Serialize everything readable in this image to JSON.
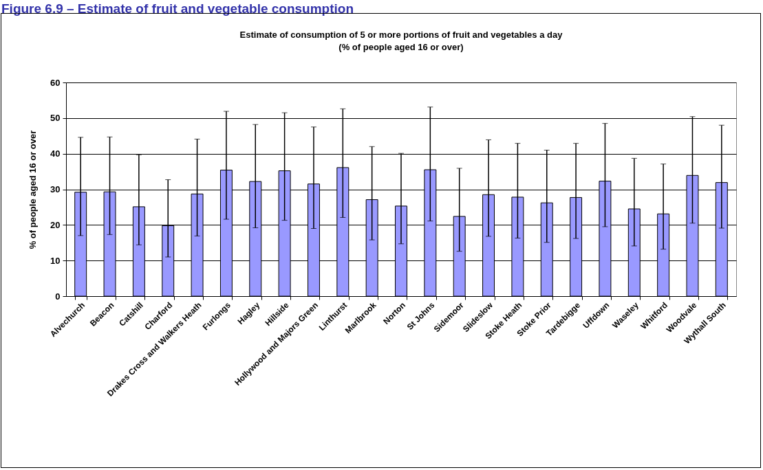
{
  "chart_data": {
    "type": "bar",
    "title": "Figure 6.9 – Estimate of fruit and vegetable consumption",
    "subtitle": "Estimate of consumption of 5 or more portions of fruit and vegetables a day\n(% of people aged 16 or over)",
    "ylabel": "% of people aged 16 or over",
    "categories": [
      "Alvechurch",
      "Beacon",
      "Catshill",
      "Charford",
      "Drakes Cross and Walkers Heath",
      "Furlongs",
      "Hagley",
      "Hillside",
      "Hollywood and Majors Green",
      "Linthurst",
      "Marlbrook",
      "Norton",
      "St Johns",
      "Sidemoor",
      "Slideslow",
      "Stoke Heath",
      "Stoke Prior",
      "Tardebigge",
      "Uffdown",
      "Waseley",
      "Whitford",
      "Woodvale",
      "Wythall South"
    ],
    "values": [
      29.2,
      29.3,
      25.1,
      19.8,
      28.7,
      35.4,
      32.2,
      35.2,
      31.5,
      36.1,
      27.1,
      25.3,
      35.5,
      22.4,
      28.5,
      27.8,
      26.2,
      27.7,
      32.3,
      24.5,
      23.1,
      33.9,
      31.9
    ],
    "errors": [
      [
        17,
        44.6
      ],
      [
        17.3,
        44.7
      ],
      [
        14.4,
        39.7
      ],
      [
        11,
        32.7
      ],
      [
        16.9,
        44.1
      ],
      [
        21.6,
        51.9
      ],
      [
        19.2,
        48.2
      ],
      [
        21.3,
        51.5
      ],
      [
        19,
        47.5
      ],
      [
        22.1,
        52.6
      ],
      [
        15.8,
        42
      ],
      [
        14.7,
        40.1
      ],
      [
        21.1,
        53.1
      ],
      [
        12.6,
        35.9
      ],
      [
        16.8,
        43.9
      ],
      [
        16.3,
        42.9
      ],
      [
        15.1,
        41
      ],
      [
        16.2,
        42.9
      ],
      [
        19.5,
        48.5
      ],
      [
        14.1,
        38.7
      ],
      [
        13.2,
        37.1
      ],
      [
        20.5,
        50.4
      ],
      [
        19.1,
        48
      ]
    ],
    "color": "#9999ff",
    "ylim": [
      0,
      60
    ],
    "yticks": [
      0,
      10,
      20,
      30,
      40,
      50,
      60
    ],
    "grid": "y"
  }
}
